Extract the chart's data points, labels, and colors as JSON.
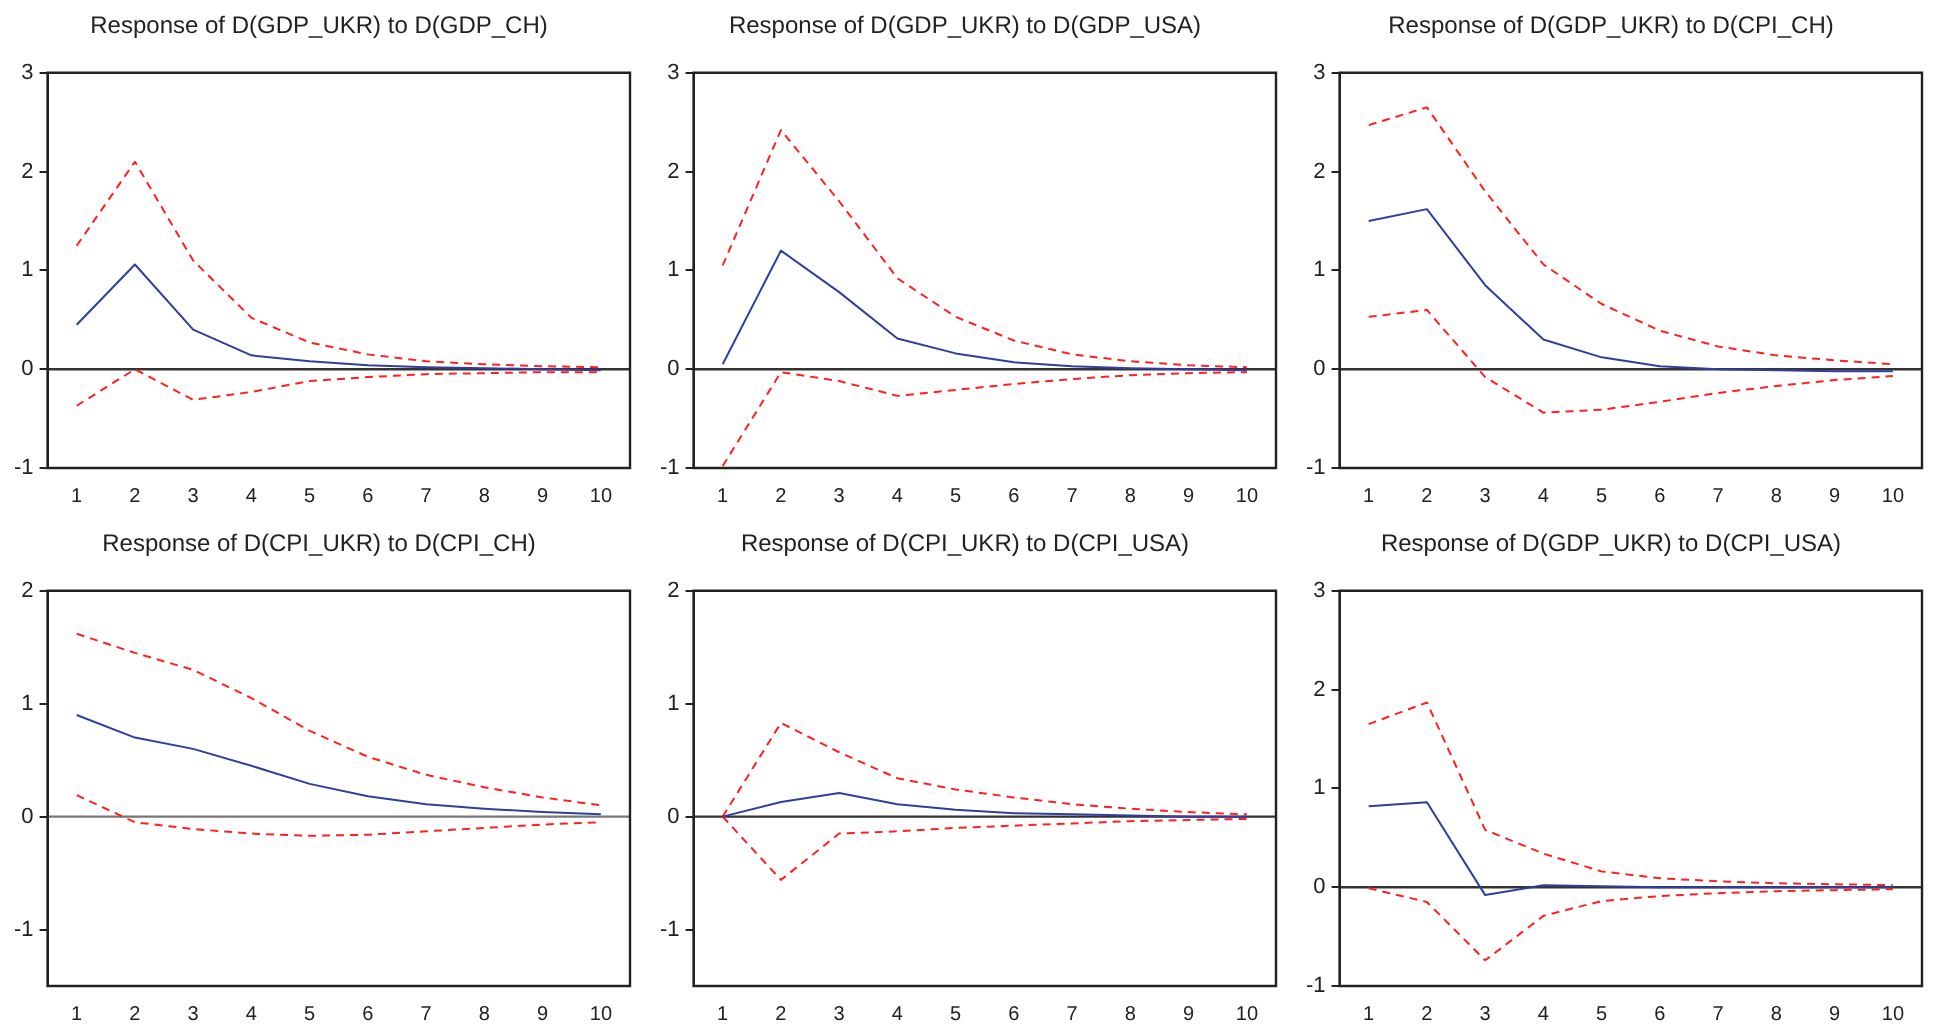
{
  "chart_data": [
    {
      "type": "line",
      "title": "Response of D(GDP_UKR) to D(GDP_CH)",
      "categories": [
        "1",
        "2",
        "3",
        "4",
        "5",
        "6",
        "7",
        "8",
        "9",
        "10"
      ],
      "ylim": [
        -1,
        3
      ],
      "yticks": [
        -1,
        0,
        1,
        2,
        3
      ],
      "grid": false,
      "legend": false,
      "marker": "none",
      "ref_lines": [
        {
          "axis": "y",
          "value": 0,
          "color": "#333333"
        }
      ],
      "series": [
        {
          "color": "#2e3f9e",
          "line_style": "solid",
          "values": [
            0.45,
            1.06,
            0.4,
            0.14,
            0.08,
            0.04,
            0.02,
            0.01,
            0,
            -0.01
          ]
        },
        {
          "color": "#ff2020",
          "line_style": "dashed",
          "values": [
            1.25,
            2.1,
            1.1,
            0.52,
            0.27,
            0.15,
            0.08,
            0.05,
            0.03,
            0.02
          ]
        },
        {
          "color": "#ff2020",
          "line_style": "dashed",
          "values": [
            -0.37,
            0,
            -0.31,
            -0.23,
            -0.12,
            -0.08,
            -0.05,
            -0.04,
            -0.03,
            -0.03
          ]
        }
      ]
    },
    {
      "type": "line",
      "title": "Response of D(GDP_UKR) to D(GDP_USA)",
      "categories": [
        "1",
        "2",
        "3",
        "4",
        "5",
        "6",
        "7",
        "8",
        "9",
        "10"
      ],
      "ylim": [
        -1,
        3
      ],
      "yticks": [
        -1,
        0,
        1,
        2,
        3
      ],
      "grid": false,
      "legend": false,
      "marker": "none",
      "ref_lines": [
        {
          "axis": "y",
          "value": 0,
          "color": "#333333"
        }
      ],
      "series": [
        {
          "color": "#2e3f9e",
          "line_style": "solid",
          "values": [
            0.05,
            1.2,
            0.78,
            0.31,
            0.16,
            0.07,
            0.03,
            0.01,
            0,
            -0.01
          ]
        },
        {
          "color": "#ff2020",
          "line_style": "dashed",
          "values": [
            1.05,
            2.42,
            1.7,
            0.92,
            0.53,
            0.29,
            0.15,
            0.08,
            0.04,
            0.02
          ]
        },
        {
          "color": "#ff2020",
          "line_style": "dashed",
          "values": [
            -0.98,
            -0.03,
            -0.12,
            -0.27,
            -0.21,
            -0.15,
            -0.1,
            -0.06,
            -0.04,
            -0.03
          ]
        }
      ]
    },
    {
      "type": "line",
      "title": "Response of D(GDP_UKR) to D(CPI_CH)",
      "categories": [
        "1",
        "2",
        "3",
        "4",
        "5",
        "6",
        "7",
        "8",
        "9",
        "10"
      ],
      "ylim": [
        -1,
        3
      ],
      "yticks": [
        -1,
        0,
        1,
        2,
        3
      ],
      "grid": false,
      "legend": false,
      "marker": "none",
      "ref_lines": [
        {
          "axis": "y",
          "value": 0,
          "color": "#333333"
        }
      ],
      "series": [
        {
          "color": "#2e3f9e",
          "line_style": "solid",
          "values": [
            1.5,
            1.62,
            0.85,
            0.3,
            0.12,
            0.03,
            0,
            -0.01,
            -0.02,
            -0.02
          ]
        },
        {
          "color": "#ff2020",
          "line_style": "dashed",
          "values": [
            2.47,
            2.65,
            1.8,
            1.06,
            0.66,
            0.39,
            0.23,
            0.14,
            0.09,
            0.05
          ]
        },
        {
          "color": "#ff2020",
          "line_style": "dashed",
          "values": [
            0.53,
            0.6,
            -0.08,
            -0.44,
            -0.41,
            -0.33,
            -0.24,
            -0.17,
            -0.11,
            -0.07
          ]
        }
      ]
    },
    {
      "type": "line",
      "title": "Response of D(CPI_UKR) to D(CPI_CH)",
      "categories": [
        "1",
        "2",
        "3",
        "4",
        "5",
        "6",
        "7",
        "8",
        "9",
        "10"
      ],
      "ylim": [
        -1.5,
        2
      ],
      "yticks": [
        -1,
        0,
        1,
        2
      ],
      "grid": false,
      "legend": false,
      "marker": "none",
      "ref_lines": [
        {
          "axis": "y",
          "value": 0,
          "color": "#777777"
        }
      ],
      "series": [
        {
          "color": "#2e3f9e",
          "line_style": "solid",
          "values": [
            0.9,
            0.7,
            0.6,
            0.45,
            0.29,
            0.18,
            0.11,
            0.07,
            0.04,
            0.02
          ]
        },
        {
          "color": "#ff2020",
          "line_style": "dashed",
          "values": [
            1.62,
            1.45,
            1.3,
            1.05,
            0.76,
            0.53,
            0.37,
            0.26,
            0.17,
            0.1
          ]
        },
        {
          "color": "#ff2020",
          "line_style": "dashed",
          "values": [
            0.19,
            -0.05,
            -0.11,
            -0.15,
            -0.17,
            -0.16,
            -0.13,
            -0.1,
            -0.07,
            -0.05
          ]
        }
      ]
    },
    {
      "type": "line",
      "title": "Response of D(CPI_UKR) to D(CPI_USA)",
      "categories": [
        "1",
        "2",
        "3",
        "4",
        "5",
        "6",
        "7",
        "8",
        "9",
        "10"
      ],
      "ylim": [
        -1.5,
        2
      ],
      "yticks": [
        -1,
        0,
        1,
        2
      ],
      "grid": false,
      "legend": false,
      "marker": "none",
      "ref_lines": [
        {
          "axis": "y",
          "value": 0,
          "color": "#333333"
        }
      ],
      "series": [
        {
          "color": "#2e3f9e",
          "line_style": "solid",
          "values": [
            0,
            0.13,
            0.21,
            0.11,
            0.06,
            0.03,
            0.02,
            0.01,
            0,
            0
          ]
        },
        {
          "color": "#ff2020",
          "line_style": "dashed",
          "values": [
            0,
            0.83,
            0.57,
            0.34,
            0.24,
            0.17,
            0.11,
            0.07,
            0.04,
            0.02
          ]
        },
        {
          "color": "#ff2020",
          "line_style": "dashed",
          "values": [
            0,
            -0.56,
            -0.15,
            -0.13,
            -0.1,
            -0.08,
            -0.06,
            -0.04,
            -0.03,
            -0.02
          ]
        }
      ]
    },
    {
      "type": "line",
      "title": "Response of D(GDP_UKR) to D(CPI_USA)",
      "categories": [
        "1",
        "2",
        "3",
        "4",
        "5",
        "6",
        "7",
        "8",
        "9",
        "10"
      ],
      "ylim": [
        -1,
        3
      ],
      "yticks": [
        -1,
        0,
        1,
        2,
        3
      ],
      "grid": false,
      "legend": false,
      "marker": "none",
      "ref_lines": [
        {
          "axis": "y",
          "value": 0,
          "color": "#333333"
        }
      ],
      "series": [
        {
          "color": "#2e3f9e",
          "line_style": "solid",
          "values": [
            0.82,
            0.86,
            -0.08,
            0.02,
            0.01,
            0,
            0,
            0,
            0,
            0
          ]
        },
        {
          "color": "#ff2020",
          "line_style": "dashed",
          "values": [
            1.65,
            1.87,
            0.58,
            0.34,
            0.16,
            0.09,
            0.06,
            0.04,
            0.03,
            0.02
          ]
        },
        {
          "color": "#ff2020",
          "line_style": "dashed",
          "values": [
            -0.01,
            -0.15,
            -0.74,
            -0.29,
            -0.14,
            -0.09,
            -0.06,
            -0.04,
            -0.03,
            -0.02
          ]
        }
      ]
    }
  ]
}
